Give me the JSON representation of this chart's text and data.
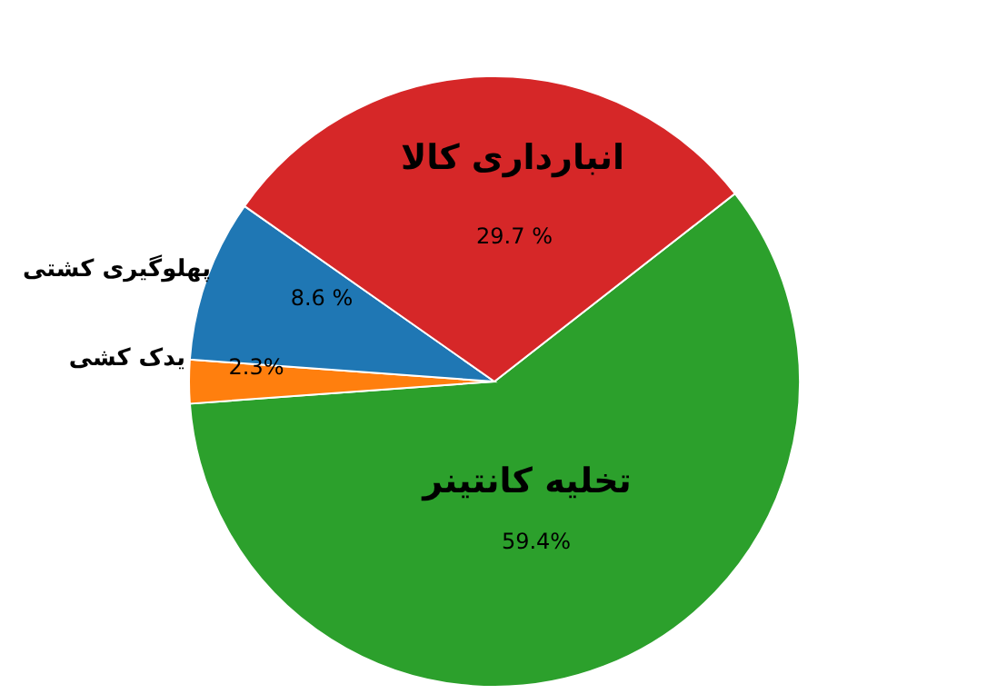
{
  "chart_data": {
    "type": "pie",
    "categories": [
      "تخلیه کانتینر",
      "یدک کشی",
      "پهلوگیری کشتی",
      "انبارداری کالا"
    ],
    "values": [
      59.4,
      2.3,
      8.6,
      29.7
    ],
    "colors": [
      "#2ca02c",
      "#ff7f0e",
      "#1f77b4",
      "#d62728"
    ],
    "value_labels": [
      "59.4%",
      "2.3%",
      "8.6 %",
      "29.7 %"
    ]
  }
}
